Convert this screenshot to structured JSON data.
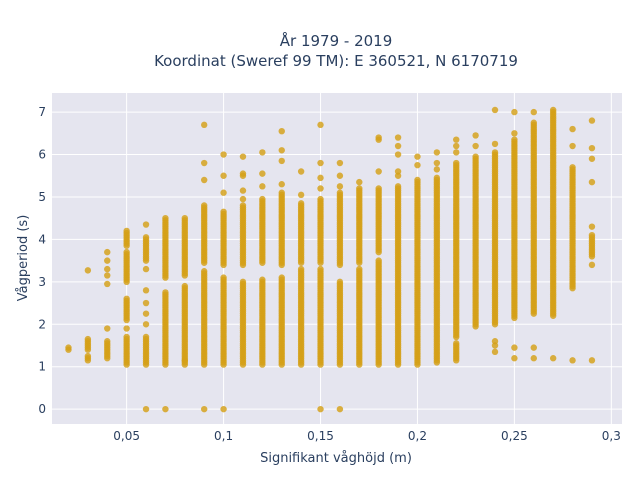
{
  "chart_data": {
    "type": "scatter",
    "title": "År 1979 - 2019",
    "subtitle": "Koordinat (Sweref 99 TM): E 360521, N 6170719",
    "xlabel": "Signifikant våghöjd (m)",
    "ylabel": "Vågperiod (s)",
    "xlim": [
      0.0115,
      0.3055
    ],
    "ylim": [
      -0.35,
      7.45
    ],
    "x_ticks": [
      0.05,
      0.1,
      0.15,
      0.2,
      0.25,
      0.3
    ],
    "x_tick_labels": [
      "0,05",
      "0,1",
      "0,15",
      "0,2",
      "0,25",
      "0,3"
    ],
    "y_ticks": [
      0,
      1,
      2,
      3,
      4,
      5,
      6,
      7
    ],
    "y_tick_labels": [
      "0",
      "1",
      "2",
      "3",
      "4",
      "5",
      "6",
      "7"
    ],
    "grid": true,
    "background": "#e5e5ef",
    "marker_color": "#d4a017",
    "series": [
      {
        "columns": [
          {
            "x": 0.02,
            "segments": [
              [
                1.4,
                1.45
              ]
            ],
            "points": []
          },
          {
            "x": 0.03,
            "segments": [
              [
                1.15,
                1.25
              ],
              [
                1.4,
                1.65
              ]
            ],
            "points": [
              3.27
            ]
          },
          {
            "x": 0.04,
            "segments": [
              [
                1.2,
                1.6
              ]
            ],
            "points": [
              1.9,
              2.95,
              3.15,
              3.3,
              3.5,
              3.7
            ]
          },
          {
            "x": 0.05,
            "segments": [
              [
                1.05,
                1.7
              ],
              [
                2.1,
                2.6
              ],
              [
                3.0,
                3.7
              ],
              [
                3.85,
                4.2
              ]
            ],
            "points": [
              1.9
            ]
          },
          {
            "x": 0.06,
            "segments": [
              [
                1.05,
                1.7
              ],
              [
                3.5,
                4.05
              ]
            ],
            "points": [
              0.0,
              2.0,
              2.25,
              2.5,
              2.8,
              3.3,
              4.35
            ]
          },
          {
            "x": 0.07,
            "segments": [
              [
                1.05,
                2.75
              ],
              [
                3.1,
                4.5
              ]
            ],
            "points": [
              0.0
            ]
          },
          {
            "x": 0.08,
            "segments": [
              [
                1.05,
                2.9
              ],
              [
                3.15,
                4.5
              ]
            ],
            "points": [
              1.15
            ]
          },
          {
            "x": 0.09,
            "segments": [
              [
                1.05,
                3.25
              ],
              [
                3.45,
                4.8
              ]
            ],
            "points": [
              0.0,
              5.4,
              5.8,
              6.7
            ]
          },
          {
            "x": 0.1,
            "segments": [
              [
                1.05,
                3.1
              ],
              [
                3.4,
                4.65
              ]
            ],
            "points": [
              0.0,
              5.1,
              5.5,
              6.0
            ]
          },
          {
            "x": 0.11,
            "segments": [
              [
                1.05,
                3.0
              ],
              [
                3.4,
                4.8
              ]
            ],
            "points": [
              4.95,
              5.15,
              5.5,
              5.55,
              5.95
            ]
          },
          {
            "x": 0.12,
            "segments": [
              [
                1.05,
                3.05
              ],
              [
                3.45,
                4.95
              ]
            ],
            "points": [
              5.25,
              5.55,
              6.05
            ]
          },
          {
            "x": 0.13,
            "segments": [
              [
                1.05,
                3.1
              ],
              [
                3.4,
                5.1
              ]
            ],
            "points": [
              5.3,
              5.85,
              6.1,
              6.55
            ]
          },
          {
            "x": 0.14,
            "segments": [
              [
                1.05,
                3.3
              ],
              [
                3.45,
                4.85
              ]
            ],
            "points": [
              5.05,
              5.6
            ]
          },
          {
            "x": 0.15,
            "segments": [
              [
                1.05,
                3.3
              ],
              [
                3.45,
                4.95
              ]
            ],
            "points": [
              0.0,
              5.2,
              5.45,
              5.8,
              6.7
            ]
          },
          {
            "x": 0.16,
            "segments": [
              [
                1.05,
                3.0
              ],
              [
                3.4,
                5.1
              ]
            ],
            "points": [
              0.0,
              5.25,
              5.5,
              5.8
            ]
          },
          {
            "x": 0.17,
            "segments": [
              [
                1.05,
                3.3
              ],
              [
                3.45,
                5.2
              ]
            ],
            "points": [
              5.35
            ]
          },
          {
            "x": 0.18,
            "segments": [
              [
                1.05,
                3.5
              ],
              [
                3.7,
                5.2
              ]
            ],
            "points": [
              5.6,
              6.35,
              6.4
            ]
          },
          {
            "x": 0.19,
            "segments": [
              [
                1.05,
                5.25
              ]
            ],
            "points": [
              5.5,
              5.6,
              6.0,
              6.2,
              6.4
            ]
          },
          {
            "x": 0.2,
            "segments": [
              [
                1.05,
                5.4
              ]
            ],
            "points": [
              5.75,
              5.95
            ]
          },
          {
            "x": 0.21,
            "segments": [
              [
                1.1,
                5.45
              ]
            ],
            "points": [
              5.65,
              5.8,
              6.05
            ]
          },
          {
            "x": 0.22,
            "segments": [
              [
                1.15,
                1.55
              ],
              [
                1.7,
                5.8
              ]
            ],
            "points": [
              6.05,
              6.2,
              6.35
            ]
          },
          {
            "x": 0.23,
            "segments": [
              [
                1.95,
                5.95
              ]
            ],
            "points": [
              6.2,
              6.45
            ]
          },
          {
            "x": 0.24,
            "segments": [
              [
                2.0,
                6.05
              ]
            ],
            "points": [
              1.35,
              1.5,
              1.6,
              6.25,
              7.05
            ]
          },
          {
            "x": 0.25,
            "segments": [
              [
                2.15,
                6.35
              ]
            ],
            "points": [
              1.2,
              1.45,
              6.5,
              7.0
            ]
          },
          {
            "x": 0.26,
            "segments": [
              [
                2.25,
                6.75
              ]
            ],
            "points": [
              1.2,
              1.45,
              7.0
            ]
          },
          {
            "x": 0.27,
            "segments": [
              [
                2.2,
                7.05
              ]
            ],
            "points": [
              1.2
            ]
          },
          {
            "x": 0.28,
            "segments": [
              [
                2.85,
                5.7
              ]
            ],
            "points": [
              1.15,
              6.2,
              6.6
            ]
          },
          {
            "x": 0.29,
            "segments": [
              [
                3.6,
                4.1
              ]
            ],
            "points": [
              1.15,
              3.4,
              4.3,
              5.35,
              5.9,
              6.15,
              6.8
            ]
          }
        ]
      }
    ]
  }
}
